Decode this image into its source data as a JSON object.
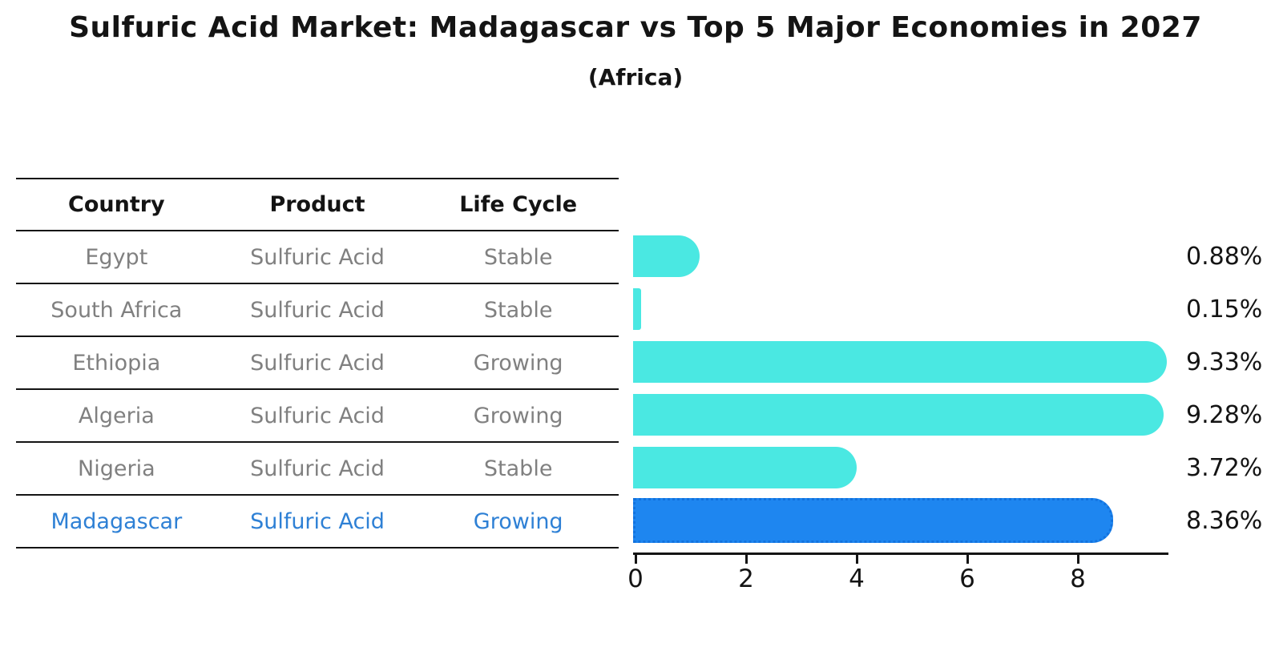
{
  "title": "Sulfuric Acid Market: Madagascar vs Top 5 Major Economies in 2027",
  "subtitle": "(Africa)",
  "table": {
    "headers": [
      "Country",
      "Product",
      "Life Cycle"
    ],
    "rows": [
      {
        "country": "Egypt",
        "product": "Sulfuric Acid",
        "life_cycle": "Stable",
        "highlight": false
      },
      {
        "country": "South Africa",
        "product": "Sulfuric Acid",
        "life_cycle": "Stable",
        "highlight": false
      },
      {
        "country": "Ethiopia",
        "product": "Sulfuric Acid",
        "life_cycle": "Growing",
        "highlight": false
      },
      {
        "country": "Algeria",
        "product": "Sulfuric Acid",
        "life_cycle": "Growing",
        "highlight": false
      },
      {
        "country": "Nigeria",
        "product": "Sulfuric Acid",
        "life_cycle": "Stable",
        "highlight": false
      },
      {
        "country": "Madagascar",
        "product": "Sulfuric Acid",
        "life_cycle": "Growing",
        "highlight": true
      }
    ]
  },
  "chart_data": {
    "type": "bar",
    "orientation": "horizontal",
    "title": "Sulfuric Acid Market: Madagascar vs Top 5 Major Economies in 2027",
    "subtitle": "(Africa)",
    "categories": [
      "Egypt",
      "South Africa",
      "Ethiopia",
      "Algeria",
      "Nigeria",
      "Madagascar"
    ],
    "values": [
      0.88,
      0.15,
      9.33,
      9.28,
      3.72,
      8.36
    ],
    "value_labels": [
      "0.88%",
      "0.15%",
      "9.33%",
      "9.28%",
      "3.72%",
      "8.36%"
    ],
    "x_ticks": [
      0,
      2,
      4,
      6,
      8
    ],
    "xlim": [
      0,
      9.9
    ],
    "xlabel": "",
    "ylabel": "",
    "grid": false,
    "legend": "none",
    "highlight_index": 5
  },
  "colors": {
    "bar": "#4AE8E2",
    "highlight_bar": "#1E86F0",
    "highlight_border": "#1272DE",
    "highlight_text": "#2E80D5",
    "row_text": "#808080",
    "axis": "#141414"
  }
}
